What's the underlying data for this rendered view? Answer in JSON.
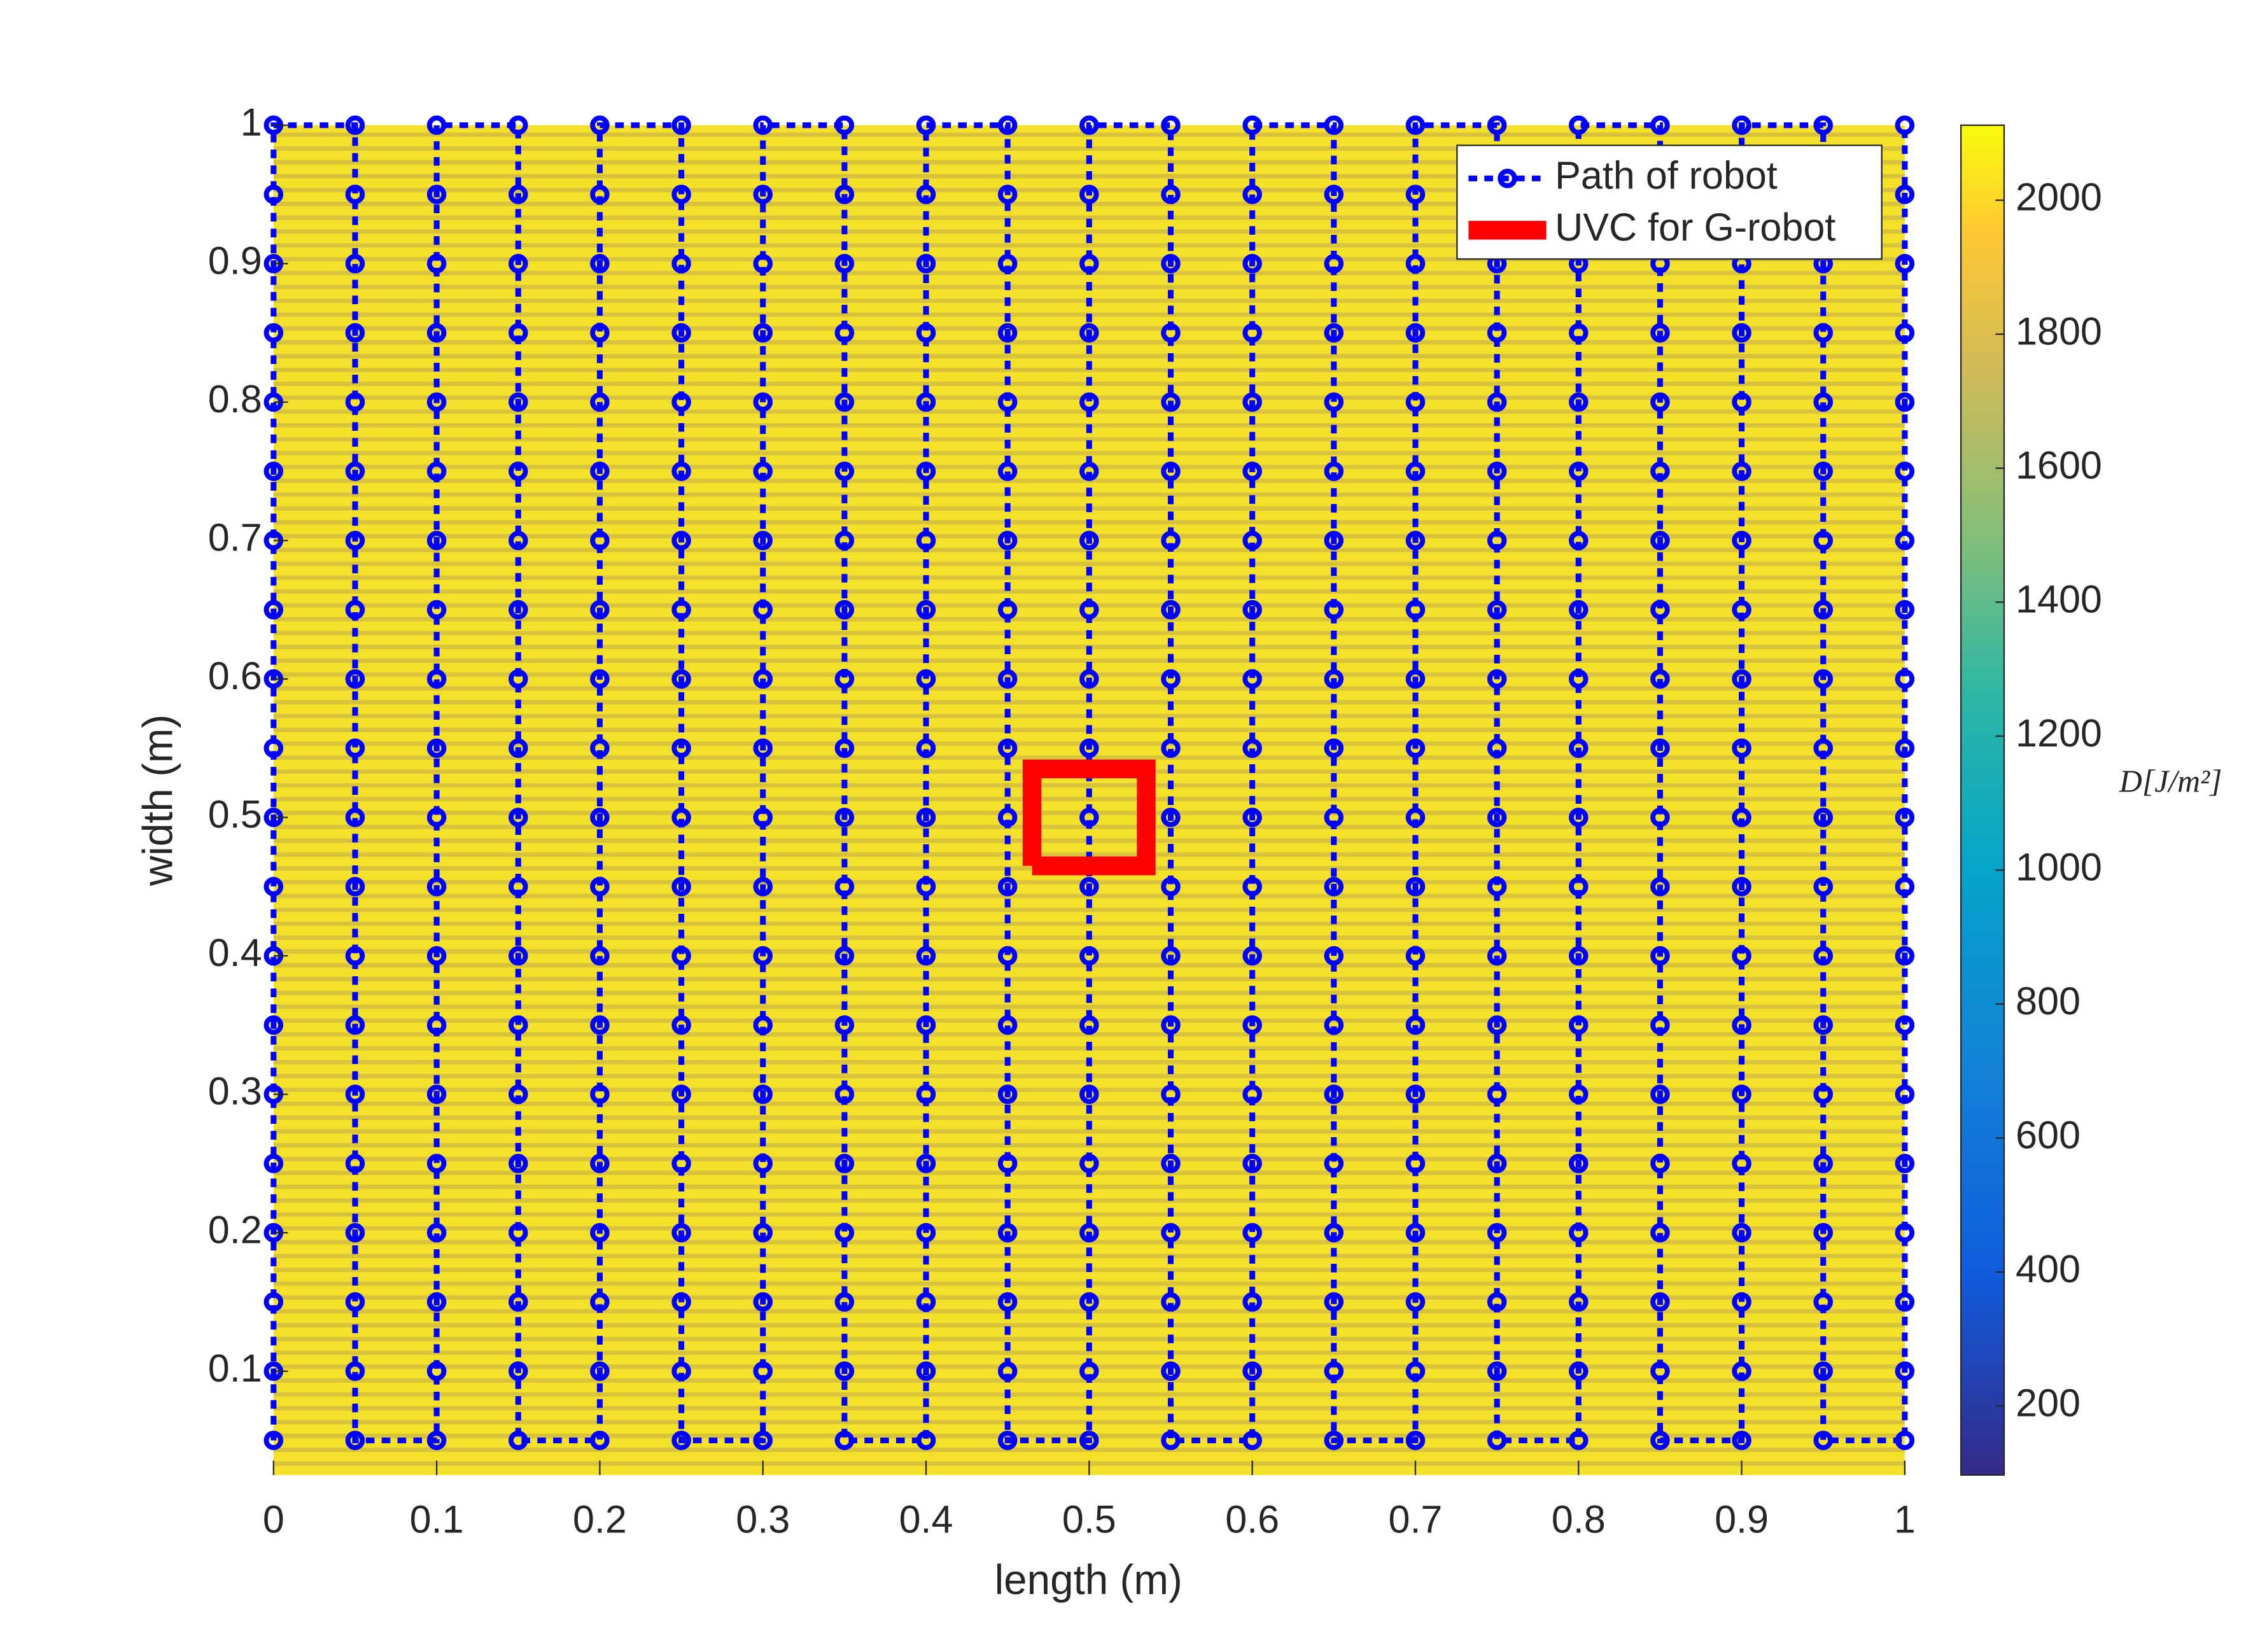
{
  "chart_data": {
    "type": "line",
    "xlabel": "length (m)",
    "ylabel": "width (m)",
    "xlim": [
      0,
      1
    ],
    "ylim": [
      0.025,
      1
    ],
    "xticks": [
      0,
      0.1,
      0.2,
      0.3,
      0.4,
      0.5,
      0.6,
      0.7,
      0.8,
      0.9,
      1
    ],
    "yticks": [
      0.1,
      0.2,
      0.3,
      0.4,
      0.5,
      0.6,
      0.7,
      0.8,
      0.9,
      1
    ],
    "colorbar": {
      "label": "D[J/m²]",
      "clim": [
        97,
        2112
      ],
      "ticks": [
        200,
        400,
        600,
        800,
        1000,
        1200,
        1400,
        1600,
        1800,
        2000
      ]
    },
    "legend": "upper right",
    "series": [
      {
        "name": "Path of robot",
        "color": "#0000ff",
        "style": "dotted-markers",
        "x": [
          0,
          0,
          0,
          0,
          0,
          0,
          0,
          0,
          0,
          0,
          0,
          0,
          0,
          0,
          0,
          0,
          0,
          0,
          0,
          0,
          0.05,
          0.05,
          0.05,
          0.05,
          0.05,
          0.05,
          0.05,
          0.05,
          0.05,
          0.05,
          0.05,
          0.05,
          0.05,
          0.05,
          0.05,
          0.05,
          0.05,
          0.05,
          0.05,
          0.05,
          0.1,
          0.1,
          0.1,
          0.1,
          0.1,
          0.1,
          0.1,
          0.1,
          0.1,
          0.1,
          0.1,
          0.1,
          0.1,
          0.1,
          0.1,
          0.1,
          0.1,
          0.1,
          0.1,
          0.1,
          0.15,
          0.15,
          0.15,
          0.15,
          0.15,
          0.15,
          0.15,
          0.15,
          0.15,
          0.15,
          0.15,
          0.15,
          0.15,
          0.15,
          0.15,
          0.15,
          0.15,
          0.15,
          0.15,
          0.15,
          0.2,
          0.2,
          0.2,
          0.2,
          0.2,
          0.2,
          0.2,
          0.2,
          0.2,
          0.2,
          0.2,
          0.2,
          0.2,
          0.2,
          0.2,
          0.2,
          0.2,
          0.2,
          0.2,
          0.2,
          0.25,
          0.25,
          0.25,
          0.25,
          0.25,
          0.25,
          0.25,
          0.25,
          0.25,
          0.25,
          0.25,
          0.25,
          0.25,
          0.25,
          0.25,
          0.25,
          0.25,
          0.25,
          0.25,
          0.25,
          0.3,
          0.3,
          0.3,
          0.3,
          0.3,
          0.3,
          0.3,
          0.3,
          0.3,
          0.3,
          0.3,
          0.3,
          0.3,
          0.3,
          0.3,
          0.3,
          0.3,
          0.3,
          0.3,
          0.3,
          0.35,
          0.35,
          0.35,
          0.35,
          0.35,
          0.35,
          0.35,
          0.35,
          0.35,
          0.35,
          0.35,
          0.35,
          0.35,
          0.35,
          0.35,
          0.35,
          0.35,
          0.35,
          0.35,
          0.35,
          0.4,
          0.4,
          0.4,
          0.4,
          0.4,
          0.4,
          0.4,
          0.4,
          0.4,
          0.4,
          0.4,
          0.4,
          0.4,
          0.4,
          0.4,
          0.4,
          0.4,
          0.4,
          0.4,
          0.4,
          0.45,
          0.45,
          0.45,
          0.45,
          0.45,
          0.45,
          0.45,
          0.45,
          0.45,
          0.45,
          0.45,
          0.45,
          0.45,
          0.45,
          0.45,
          0.45,
          0.45,
          0.45,
          0.45,
          0.45,
          0.5,
          0.5,
          0.5,
          0.5,
          0.5,
          0.5,
          0.5,
          0.5,
          0.5,
          0.5,
          0.5,
          0.5,
          0.5,
          0.5,
          0.5,
          0.5,
          0.5,
          0.5,
          0.5,
          0.5,
          0.55,
          0.55,
          0.55,
          0.55,
          0.55,
          0.55,
          0.55,
          0.55,
          0.55,
          0.55,
          0.55,
          0.55,
          0.55,
          0.55,
          0.55,
          0.55,
          0.55,
          0.55,
          0.55,
          0.55,
          0.6,
          0.6,
          0.6,
          0.6,
          0.6,
          0.6,
          0.6,
          0.6,
          0.6,
          0.6,
          0.6,
          0.6,
          0.6,
          0.6,
          0.6,
          0.6,
          0.6,
          0.6,
          0.6,
          0.6,
          0.65,
          0.65,
          0.65,
          0.65,
          0.65,
          0.65,
          0.65,
          0.65,
          0.65,
          0.65,
          0.65,
          0.65,
          0.65,
          0.65,
          0.65,
          0.65,
          0.65,
          0.65,
          0.65,
          0.65,
          0.7,
          0.7,
          0.7,
          0.7,
          0.7,
          0.7,
          0.7,
          0.7,
          0.7,
          0.7,
          0.7,
          0.7,
          0.7,
          0.7,
          0.7,
          0.7,
          0.7,
          0.7,
          0.7,
          0.7,
          0.75,
          0.75,
          0.75,
          0.75,
          0.75,
          0.75,
          0.75,
          0.75,
          0.75,
          0.75,
          0.75,
          0.75,
          0.75,
          0.75,
          0.75,
          0.75,
          0.75,
          0.75,
          0.75,
          0.75,
          0.8,
          0.8,
          0.8,
          0.8,
          0.8,
          0.8,
          0.8,
          0.8,
          0.8,
          0.8,
          0.8,
          0.8,
          0.8,
          0.8,
          0.8,
          0.8,
          0.8,
          0.8,
          0.8,
          0.8,
          0.85,
          0.85,
          0.85,
          0.85,
          0.85,
          0.85,
          0.85,
          0.85,
          0.85,
          0.85,
          0.85,
          0.85,
          0.85,
          0.85,
          0.85,
          0.85,
          0.85,
          0.85,
          0.85,
          0.85,
          0.9,
          0.9,
          0.9,
          0.9,
          0.9,
          0.9,
          0.9,
          0.9,
          0.9,
          0.9,
          0.9,
          0.9,
          0.9,
          0.9,
          0.9,
          0.9,
          0.9,
          0.9,
          0.9,
          0.9,
          0.95,
          0.95,
          0.95,
          0.95,
          0.95,
          0.95,
          0.95,
          0.95,
          0.95,
          0.95,
          0.95,
          0.95,
          0.95,
          0.95,
          0.95,
          0.95,
          0.95,
          0.95,
          0.95,
          0.95,
          1,
          1,
          1,
          1,
          1,
          1,
          1,
          1,
          1,
          1,
          1,
          1,
          1,
          1,
          1,
          1,
          1,
          1,
          1,
          1
        ],
        "y": [
          0.05,
          0.1,
          0.15,
          0.2,
          0.25,
          0.3,
          0.35,
          0.4,
          0.45,
          0.5,
          0.55,
          0.6,
          0.65,
          0.7,
          0.75,
          0.8,
          0.85,
          0.9,
          0.95,
          1,
          1,
          0.95,
          0.9,
          0.85,
          0.8,
          0.75,
          0.7,
          0.65,
          0.6,
          0.55,
          0.5,
          0.45,
          0.4,
          0.35,
          0.3,
          0.25,
          0.2,
          0.15,
          0.1,
          0.05,
          0.05,
          0.1,
          0.15,
          0.2,
          0.25,
          0.3,
          0.35,
          0.4,
          0.45,
          0.5,
          0.55,
          0.6,
          0.65,
          0.7,
          0.75,
          0.8,
          0.85,
          0.9,
          0.95,
          1,
          1,
          0.95,
          0.9,
          0.85,
          0.8,
          0.75,
          0.7,
          0.65,
          0.6,
          0.55,
          0.5,
          0.45,
          0.4,
          0.35,
          0.3,
          0.25,
          0.2,
          0.15,
          0.1,
          0.05,
          0.05,
          0.1,
          0.15,
          0.2,
          0.25,
          0.3,
          0.35,
          0.4,
          0.45,
          0.5,
          0.55,
          0.6,
          0.65,
          0.7,
          0.75,
          0.8,
          0.85,
          0.9,
          0.95,
          1,
          1,
          0.95,
          0.9,
          0.85,
          0.8,
          0.75,
          0.7,
          0.65,
          0.6,
          0.55,
          0.5,
          0.45,
          0.4,
          0.35,
          0.3,
          0.25,
          0.2,
          0.15,
          0.1,
          0.05,
          0.05,
          0.1,
          0.15,
          0.2,
          0.25,
          0.3,
          0.35,
          0.4,
          0.45,
          0.5,
          0.55,
          0.6,
          0.65,
          0.7,
          0.75,
          0.8,
          0.85,
          0.9,
          0.95,
          1,
          1,
          0.95,
          0.9,
          0.85,
          0.8,
          0.75,
          0.7,
          0.65,
          0.6,
          0.55,
          0.5,
          0.45,
          0.4,
          0.35,
          0.3,
          0.25,
          0.2,
          0.15,
          0.1,
          0.05,
          0.05,
          0.1,
          0.15,
          0.2,
          0.25,
          0.3,
          0.35,
          0.4,
          0.45,
          0.5,
          0.55,
          0.6,
          0.65,
          0.7,
          0.75,
          0.8,
          0.85,
          0.9,
          0.95,
          1,
          1,
          0.95,
          0.9,
          0.85,
          0.8,
          0.75,
          0.7,
          0.65,
          0.6,
          0.55,
          0.5,
          0.45,
          0.4,
          0.35,
          0.3,
          0.25,
          0.2,
          0.15,
          0.1,
          0.05,
          0.05,
          0.1,
          0.15,
          0.2,
          0.25,
          0.3,
          0.35,
          0.4,
          0.45,
          0.5,
          0.55,
          0.6,
          0.65,
          0.7,
          0.75,
          0.8,
          0.85,
          0.9,
          0.95,
          1,
          1,
          0.95,
          0.9,
          0.85,
          0.8,
          0.75,
          0.7,
          0.65,
          0.6,
          0.55,
          0.5,
          0.45,
          0.4,
          0.35,
          0.3,
          0.25,
          0.2,
          0.15,
          0.1,
          0.05,
          0.05,
          0.1,
          0.15,
          0.2,
          0.25,
          0.3,
          0.35,
          0.4,
          0.45,
          0.5,
          0.55,
          0.6,
          0.65,
          0.7,
          0.75,
          0.8,
          0.85,
          0.9,
          0.95,
          1,
          1,
          0.95,
          0.9,
          0.85,
          0.8,
          0.75,
          0.7,
          0.65,
          0.6,
          0.55,
          0.5,
          0.45,
          0.4,
          0.35,
          0.3,
          0.25,
          0.2,
          0.15,
          0.1,
          0.05,
          0.05,
          0.1,
          0.15,
          0.2,
          0.25,
          0.3,
          0.35,
          0.4,
          0.45,
          0.5,
          0.55,
          0.6,
          0.65,
          0.7,
          0.75,
          0.8,
          0.85,
          0.9,
          0.95,
          1,
          1,
          0.95,
          0.9,
          0.85,
          0.8,
          0.75,
          0.7,
          0.65,
          0.6,
          0.55,
          0.5,
          0.45,
          0.4,
          0.35,
          0.3,
          0.25,
          0.2,
          0.15,
          0.1,
          0.05,
          0.05,
          0.1,
          0.15,
          0.2,
          0.25,
          0.3,
          0.35,
          0.4,
          0.45,
          0.5,
          0.55,
          0.6,
          0.65,
          0.7,
          0.75,
          0.8,
          0.85,
          0.9,
          0.95,
          1,
          1,
          0.95,
          0.9,
          0.85,
          0.8,
          0.75,
          0.7,
          0.65,
          0.6,
          0.55,
          0.5,
          0.45,
          0.4,
          0.35,
          0.3,
          0.25,
          0.2,
          0.15,
          0.1,
          0.05,
          0.05,
          0.1,
          0.15,
          0.2,
          0.25,
          0.3,
          0.35,
          0.4,
          0.45,
          0.5,
          0.55,
          0.6,
          0.65,
          0.7,
          0.75,
          0.8,
          0.85,
          0.9,
          0.95,
          1,
          1,
          0.95,
          0.9,
          0.85,
          0.8,
          0.75,
          0.7,
          0.65,
          0.6,
          0.55,
          0.5,
          0.45,
          0.4,
          0.35,
          0.3,
          0.25,
          0.2,
          0.15,
          0.1,
          0.05,
          0.05,
          0.1,
          0.15,
          0.2,
          0.25,
          0.3,
          0.35,
          0.4,
          0.45,
          0.5,
          0.55,
          0.6,
          0.65,
          0.7,
          0.75,
          0.8,
          0.85,
          0.9,
          0.95,
          1
        ]
      },
      {
        "name": "UVC for G-robot",
        "color": "#ff0000",
        "style": "thick",
        "x": [
          0.465,
          0.535,
          0.535,
          0.465,
          0.465
        ],
        "y": [
          0.465,
          0.465,
          0.535,
          0.535,
          0.465
        ]
      }
    ]
  }
}
